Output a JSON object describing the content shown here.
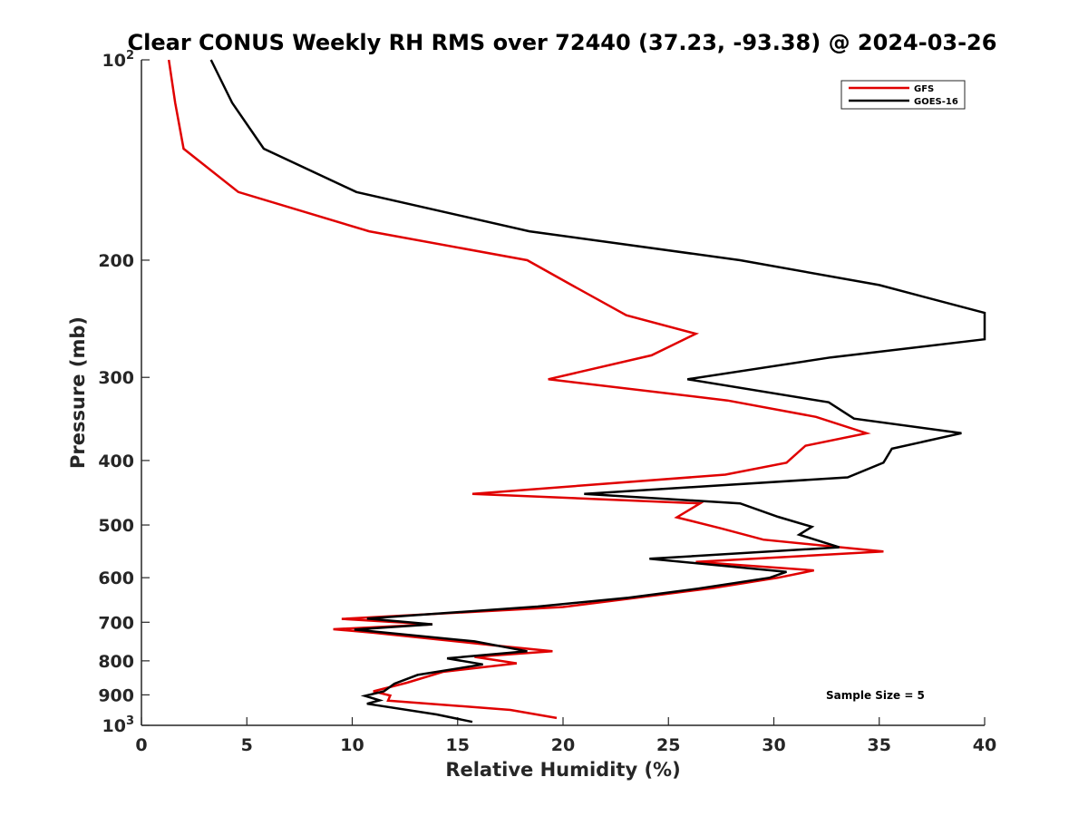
{
  "chart_data": {
    "type": "line",
    "title": "Clear CONUS Weekly RH RMS over 72440 (37.23, -93.38) @ 2024-03-26",
    "xlabel": "Relative Humidity (%)",
    "ylabel": "Pressure (mb)",
    "xlim": [
      0,
      40
    ],
    "ylim": [
      100,
      1000
    ],
    "y_scale": "log",
    "y_reversed": true,
    "grid": false,
    "legend_position": "top-right",
    "x_ticks": [
      "0",
      "5",
      "10",
      "15",
      "20",
      "25",
      "30",
      "35",
      "40"
    ],
    "x_tick_values": [
      0,
      5,
      10,
      15,
      20,
      25,
      30,
      35,
      40
    ],
    "y_ticks": [
      {
        "value": 100,
        "base": "10",
        "sup": "2"
      },
      {
        "value": 200,
        "label": "200"
      },
      {
        "value": 300,
        "label": "300"
      },
      {
        "value": 400,
        "label": "400"
      },
      {
        "value": 500,
        "label": "500"
      },
      {
        "value": 600,
        "label": "600"
      },
      {
        "value": 700,
        "label": "700"
      },
      {
        "value": 800,
        "label": "800"
      },
      {
        "value": 900,
        "label": "900"
      },
      {
        "value": 1000,
        "base": "10",
        "sup": "3"
      }
    ],
    "annotation": "Sample Size = 5",
    "series": [
      {
        "name": "GFS",
        "color": "#e00000",
        "points": [
          [
            1.3,
            100
          ],
          [
            1.6,
            116
          ],
          [
            2.0,
            136
          ],
          [
            4.6,
            158
          ],
          [
            10.8,
            181
          ],
          [
            18.3,
            200
          ],
          [
            20.3,
            217
          ],
          [
            23.0,
            242
          ],
          [
            26.3,
            258
          ],
          [
            24.2,
            278
          ],
          [
            19.3,
            302
          ],
          [
            27.8,
            325
          ],
          [
            32.0,
            344
          ],
          [
            34.4,
            364
          ],
          [
            31.5,
            380
          ],
          [
            30.6,
            403
          ],
          [
            27.7,
            420
          ],
          [
            15.7,
            449
          ],
          [
            26.5,
            464
          ],
          [
            25.4,
            487
          ],
          [
            27.5,
            506
          ],
          [
            29.5,
            526
          ],
          [
            35.2,
            548
          ],
          [
            26.3,
            568
          ],
          [
            31.9,
            585
          ],
          [
            30.2,
            600
          ],
          [
            27.1,
            622
          ],
          [
            23.5,
            643
          ],
          [
            20.0,
            664
          ],
          [
            9.5,
            692
          ],
          [
            13.8,
            705
          ],
          [
            9.1,
            717
          ],
          [
            11.0,
            726
          ],
          [
            16.7,
            758
          ],
          [
            19.5,
            774
          ],
          [
            15.8,
            789
          ],
          [
            17.8,
            807
          ],
          [
            14.3,
            831
          ],
          [
            12.6,
            863
          ],
          [
            11.0,
            889
          ],
          [
            11.8,
            902
          ],
          [
            11.7,
            918
          ],
          [
            17.5,
            948
          ],
          [
            19.7,
            975
          ]
        ]
      },
      {
        "name": "GOES-16",
        "color": "#000000",
        "points": [
          [
            3.3,
            100
          ],
          [
            4.3,
            116
          ],
          [
            5.8,
            136
          ],
          [
            10.2,
            158
          ],
          [
            18.4,
            181
          ],
          [
            28.4,
            200
          ],
          [
            35.0,
            218
          ],
          [
            40.0,
            240
          ],
          [
            40.0,
            263
          ],
          [
            32.7,
            280
          ],
          [
            25.9,
            302
          ],
          [
            32.6,
            327
          ],
          [
            33.8,
            346
          ],
          [
            38.9,
            364
          ],
          [
            35.6,
            384
          ],
          [
            35.2,
            403
          ],
          [
            33.5,
            424
          ],
          [
            21.0,
            449
          ],
          [
            28.4,
            464
          ],
          [
            30.2,
            486
          ],
          [
            31.8,
            503
          ],
          [
            31.2,
            517
          ],
          [
            33.1,
            540
          ],
          [
            24.1,
            562
          ],
          [
            30.6,
            588
          ],
          [
            29.8,
            600
          ],
          [
            26.4,
            623
          ],
          [
            23.1,
            643
          ],
          [
            18.8,
            663
          ],
          [
            10.7,
            691
          ],
          [
            13.8,
            705
          ],
          [
            10.1,
            718
          ],
          [
            15.8,
            748
          ],
          [
            18.3,
            774
          ],
          [
            14.5,
            793
          ],
          [
            16.2,
            810
          ],
          [
            13.1,
            840
          ],
          [
            12.0,
            866
          ],
          [
            11.5,
            889
          ],
          [
            10.6,
            903
          ],
          [
            11.3,
            917
          ],
          [
            10.7,
            928
          ],
          [
            14.0,
            963
          ],
          [
            15.7,
            988
          ]
        ]
      }
    ]
  }
}
